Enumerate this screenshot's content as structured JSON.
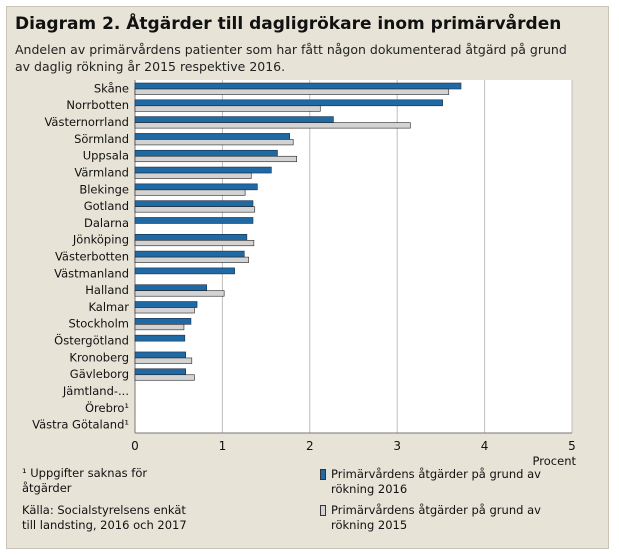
{
  "title": "Diagram 2. Åtgärder till dagligrökare inom primärvården",
  "subtitle": "Andelen av primärvårdens patienter som har fått någon dokumenterad åtgärd på grund av daglig rökning  år 2015 respektive 2016.",
  "footnote": "¹ Uppgifter saknas för åtgärder",
  "source": "Källa: Socialstyrelsens enkät till landsting, 2016 och 2017",
  "colors": {
    "series_2016": "#1f6aa5",
    "series_2015": "#d3d3d3",
    "background": "#e7e3d6",
    "plot_area": "#ffffff"
  },
  "chart_data": {
    "type": "bar",
    "orientation": "horizontal",
    "categories": [
      "Skåne",
      "Norrbotten",
      "Västernorrland",
      "Sörmland",
      "Uppsala",
      "Värmland",
      "Blekinge",
      "Gotland",
      "Dalarna",
      "Jönköping",
      "Västerbotten",
      "Västmanland",
      "Halland",
      "Kalmar",
      "Stockholm",
      "Östergötland",
      "Kronoberg",
      "Gävleborg",
      "Jämtland-...",
      "Örebro¹",
      "Västra Götaland¹"
    ],
    "series": [
      {
        "name": "Primärvårdens åtgärder på grund av rökning 2016",
        "color": "#1f6aa5",
        "values": [
          3.73,
          3.52,
          2.27,
          1.77,
          1.63,
          1.56,
          1.4,
          1.35,
          1.35,
          1.28,
          1.25,
          1.14,
          0.82,
          0.71,
          0.64,
          0.57,
          0.58,
          0.58,
          null,
          null,
          null
        ]
      },
      {
        "name": "Primärvårdens åtgärder på grund av rökning 2015",
        "color": "#d3d3d3",
        "values": [
          3.59,
          2.12,
          3.15,
          1.81,
          1.85,
          1.33,
          1.26,
          1.37,
          null,
          1.36,
          1.3,
          null,
          1.02,
          0.68,
          0.56,
          null,
          0.65,
          0.68,
          null,
          null,
          null
        ]
      }
    ],
    "xlim": [
      0,
      5
    ],
    "xticks": [
      0,
      1,
      2,
      3,
      4,
      5
    ],
    "xlabel": "Procent",
    "ylabel": "",
    "grid": "vertical",
    "legend_position": "bottom-right"
  }
}
